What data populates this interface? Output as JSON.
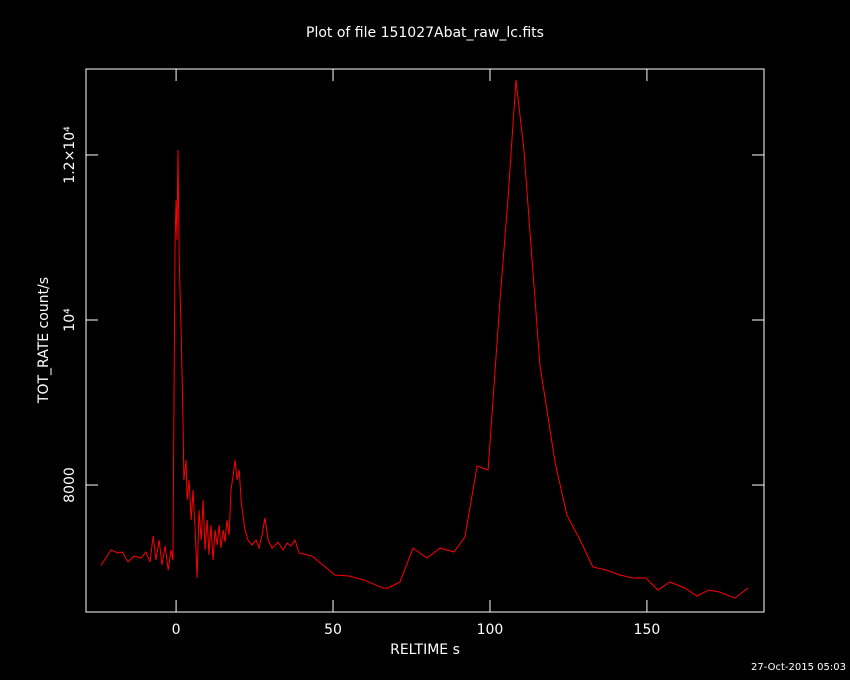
{
  "chart_data": {
    "type": "line",
    "title": "Plot of file 151027Abat_raw_lc.fits",
    "x_label": "RELTIME  s",
    "y_label": "TOT_RATE  count/s",
    "footer": "27-Oct-2015 05:03",
    "xlim": [
      -28.7,
      187.3
    ],
    "ylim": [
      6461,
      13042
    ],
    "xticks": [
      0,
      50,
      100,
      150
    ],
    "yticks": [
      8000,
      {
        "value": 10000,
        "label": "10⁴"
      },
      {
        "value": 12000,
        "label": "1.2×10⁴"
      }
    ],
    "x": [
      -23.9,
      -20.7,
      -18.5,
      -17.2,
      -15.3,
      -13.4,
      -11.1,
      -9.6,
      -8.3,
      -7.3,
      -6.4,
      -5.4,
      -4.5,
      -3.5,
      -2.5,
      -1.6,
      -1.0,
      -0.3,
      0,
      0.3,
      0.6,
      1.0,
      1.6,
      2.2,
      2.5,
      3.2,
      3.5,
      4.1,
      4.8,
      5.4,
      6.1,
      6.7,
      7.3,
      8.0,
      8.6,
      9.2,
      9.9,
      10.5,
      11.1,
      11.8,
      12.4,
      13.1,
      13.7,
      14.3,
      15.0,
      15.6,
      16.2,
      16.9,
      17.5,
      18.2,
      18.8,
      19.4,
      20.1,
      20.7,
      21.3,
      22.0,
      22.9,
      24.2,
      25.5,
      26.4,
      27.4,
      28.3,
      29.3,
      30.6,
      32.5,
      34.1,
      35.4,
      36.6,
      37.9,
      39.2,
      43.3,
      46.8,
      50.6,
      55.1,
      59.9,
      65.9,
      67.5,
      71.3,
      75.5,
      79.9,
      84.1,
      88.5,
      92.0,
      95.9,
      99.4,
      103.2,
      105.7,
      108.3,
      110.8,
      115.9,
      120.7,
      124.5,
      128.7,
      132.8,
      137.0,
      141.4,
      145.5,
      149.7,
      153.5,
      157.3,
      162.1,
      165.9,
      169.7,
      173.2,
      178.0,
      182.2
    ],
    "series": [
      {
        "color": "#ff0000",
        "values": [
          7030,
          7212,
          7176,
          7188,
          7067,
          7139,
          7115,
          7188,
          7067,
          7382,
          7091,
          7333,
          7030,
          7261,
          6970,
          7212,
          7091,
          10970,
          11455,
          10970,
          12061,
          10727,
          9879,
          8788,
          8061,
          8303,
          7818,
          8061,
          7576,
          7939,
          7455,
          6873,
          7697,
          7333,
          7818,
          7212,
          7576,
          7152,
          7515,
          7091,
          7455,
          7273,
          7515,
          7236,
          7455,
          7309,
          7576,
          7394,
          7939,
          8121,
          8303,
          8061,
          8182,
          7818,
          7636,
          7455,
          7333,
          7273,
          7333,
          7236,
          7394,
          7600,
          7333,
          7236,
          7309,
          7212,
          7297,
          7261,
          7333,
          7176,
          7139,
          7030,
          6909,
          6897,
          6848,
          6752,
          6752,
          6824,
          7236,
          7115,
          7236,
          7188,
          7370,
          8230,
          8182,
          10242,
          11455,
          12909,
          12061,
          9455,
          8279,
          7636,
          7333,
          7006,
          6970,
          6909,
          6873,
          6873,
          6727,
          6824,
          6752,
          6655,
          6727,
          6703,
          6630,
          6752
        ]
      }
    ]
  }
}
